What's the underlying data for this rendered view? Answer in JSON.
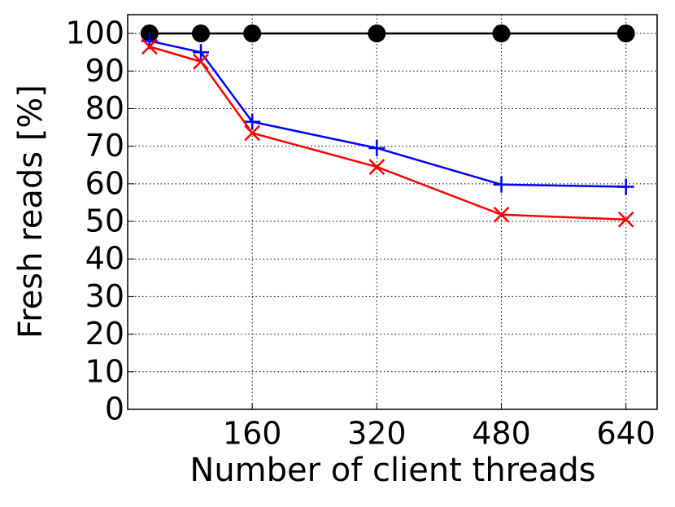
{
  "chart_data": {
    "type": "line",
    "x_label": "Number of client threads",
    "y_label": "Fresh reads [%]",
    "x": [
      28,
      94,
      160,
      320,
      480,
      640
    ],
    "series": [
      {
        "color": "#000000",
        "marker": "o",
        "values": [
          100,
          100,
          100,
          100,
          100,
          100
        ]
      },
      {
        "color": "#0000ff",
        "marker": "+",
        "values": [
          98,
          95,
          76.5,
          69.5,
          59.8,
          59.2
        ]
      },
      {
        "color": "#ff0000",
        "marker": "x",
        "values": [
          96.5,
          92.5,
          73.5,
          64.5,
          51.8,
          50.5
        ]
      }
    ],
    "xlim": [
      0,
      680
    ],
    "xticks": [
      160,
      320,
      480,
      640
    ],
    "ylim": [
      0,
      105
    ],
    "yticks": [
      0,
      10,
      20,
      30,
      40,
      50,
      60,
      70,
      80,
      90,
      100
    ],
    "grid": true
  }
}
